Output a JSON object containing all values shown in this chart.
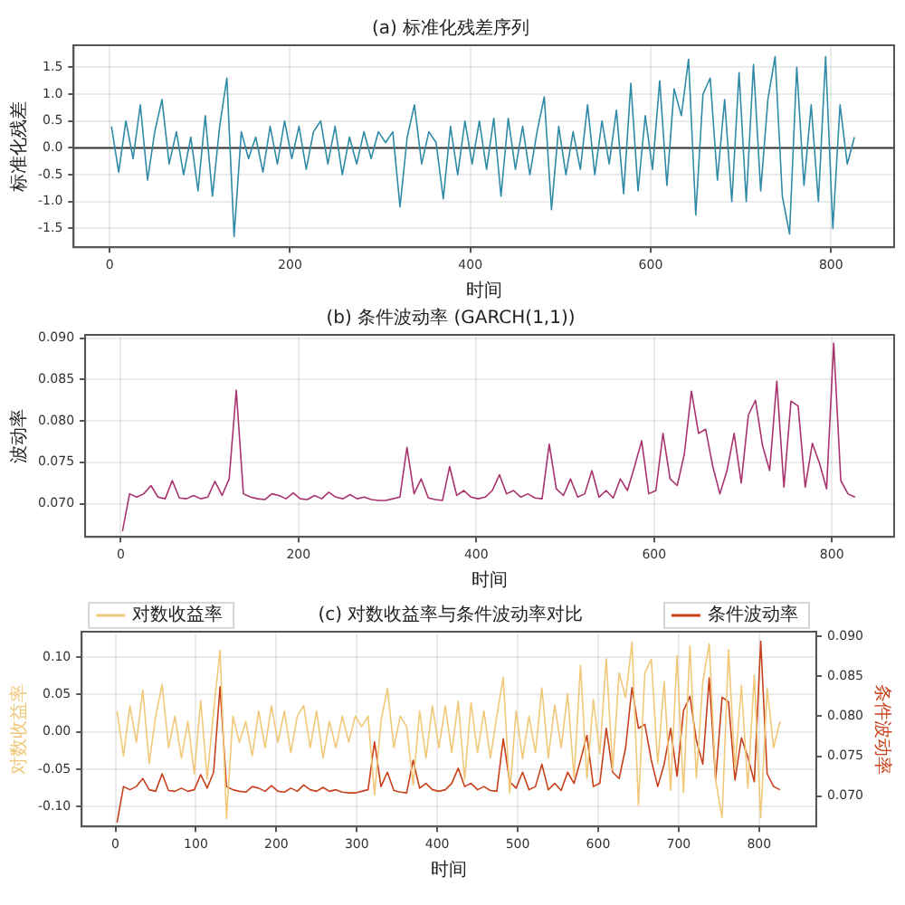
{
  "chart_data": [
    {
      "type": "line",
      "title": "(a) 标准化残差序列",
      "xlabel": "时间",
      "ylabel": "标准化残差",
      "x": [
        2,
        10,
        18,
        26,
        34,
        42,
        50,
        58,
        66,
        74,
        82,
        90,
        98,
        106,
        114,
        122,
        130,
        138,
        146,
        154,
        162,
        170,
        178,
        186,
        194,
        202,
        210,
        218,
        226,
        234,
        242,
        250,
        258,
        266,
        274,
        282,
        290,
        298,
        306,
        314,
        322,
        330,
        338,
        346,
        354,
        362,
        370,
        378,
        386,
        394,
        402,
        410,
        418,
        426,
        434,
        442,
        450,
        458,
        466,
        474,
        482,
        490,
        498,
        506,
        514,
        522,
        530,
        538,
        546,
        554,
        562,
        570,
        578,
        586,
        594,
        602,
        610,
        618,
        626,
        634,
        642,
        650,
        658,
        666,
        674,
        682,
        690,
        698,
        706,
        714,
        722,
        730,
        738,
        746,
        754,
        762,
        770,
        778,
        786,
        794,
        802,
        810,
        818,
        826
      ],
      "series": [
        {
          "color": "#2e8aa6",
          "values": [
            0.4,
            -0.45,
            0.5,
            -0.2,
            0.8,
            -0.6,
            0.3,
            0.9,
            -0.3,
            0.3,
            -0.5,
            0.2,
            -0.8,
            0.6,
            -0.9,
            0.4,
            1.3,
            -1.65,
            0.3,
            -0.2,
            0.2,
            -0.45,
            0.4,
            -0.3,
            0.5,
            -0.2,
            0.4,
            -0.4,
            0.3,
            0.5,
            -0.3,
            0.4,
            -0.5,
            0.2,
            -0.3,
            0.3,
            -0.2,
            0.3,
            0.1,
            0.3,
            -1.1,
            0.2,
            0.8,
            -0.3,
            0.3,
            0.1,
            -0.95,
            0.4,
            -0.5,
            0.5,
            -0.3,
            0.5,
            -0.4,
            0.55,
            -0.9,
            0.55,
            -0.4,
            0.4,
            -0.5,
            0.3,
            0.95,
            -1.15,
            0.4,
            -0.5,
            0.3,
            -0.4,
            0.8,
            -0.5,
            0.5,
            -0.3,
            0.7,
            -0.85,
            1.2,
            -0.8,
            0.6,
            -0.4,
            1.25,
            -0.7,
            1.1,
            0.6,
            1.65,
            -1.25,
            1.0,
            1.3,
            -0.6,
            0.9,
            -1.0,
            1.4,
            -1.0,
            1.55,
            -0.8,
            0.9,
            1.7,
            -0.9,
            -1.6,
            1.5,
            -0.7,
            0.8,
            -1.0,
            1.7,
            -1.5,
            0.8,
            -0.3,
            0.2
          ]
        }
      ],
      "xlim": [
        -40,
        870
      ],
      "ylim": [
        -1.85,
        1.91
      ],
      "xticks": [
        0,
        200,
        400,
        600,
        800
      ],
      "yticks": [
        -1.5,
        {
          "value": -1,
          "label": "-1.0"
        },
        -0.5,
        {
          "value": 0,
          "label": "0.0"
        },
        0.5,
        {
          "value": 1,
          "label": "1.0"
        },
        1.5
      ],
      "grid": true,
      "ref_lines": [
        {
          "axis": "y",
          "value": 0,
          "color": "#333333"
        }
      ]
    },
    {
      "type": "line",
      "title": "(b) 条件波动率 (GARCH(1,1))",
      "xlabel": "时间",
      "ylabel": "波动率",
      "x": [
        2,
        10,
        18,
        26,
        34,
        42,
        50,
        58,
        66,
        74,
        82,
        90,
        98,
        106,
        114,
        122,
        130,
        138,
        146,
        154,
        162,
        170,
        178,
        186,
        194,
        202,
        210,
        218,
        226,
        234,
        242,
        250,
        258,
        266,
        274,
        282,
        290,
        298,
        306,
        314,
        322,
        330,
        338,
        346,
        354,
        362,
        370,
        378,
        386,
        394,
        402,
        410,
        418,
        426,
        434,
        442,
        450,
        458,
        466,
        474,
        482,
        490,
        498,
        506,
        514,
        522,
        530,
        538,
        546,
        554,
        562,
        570,
        578,
        586,
        594,
        602,
        610,
        618,
        626,
        634,
        642,
        650,
        658,
        666,
        674,
        682,
        690,
        698,
        706,
        714,
        722,
        730,
        738,
        746,
        754,
        762,
        770,
        778,
        786,
        794,
        802,
        810,
        818,
        826
      ],
      "series": [
        {
          "color": "#a8326e",
          "values": [
            0.0667,
            0.0712,
            0.0708,
            0.0712,
            0.0722,
            0.0708,
            0.0706,
            0.0728,
            0.0707,
            0.0706,
            0.071,
            0.0706,
            0.0708,
            0.0727,
            0.071,
            0.073,
            0.0837,
            0.0712,
            0.0708,
            0.0706,
            0.0705,
            0.0712,
            0.071,
            0.0706,
            0.0713,
            0.0706,
            0.0705,
            0.071,
            0.0706,
            0.0714,
            0.0708,
            0.0706,
            0.0711,
            0.0706,
            0.0708,
            0.0705,
            0.0704,
            0.0704,
            0.0706,
            0.0708,
            0.0768,
            0.0712,
            0.073,
            0.0707,
            0.0705,
            0.0704,
            0.0745,
            0.071,
            0.0716,
            0.0708,
            0.0706,
            0.0708,
            0.0716,
            0.0735,
            0.0712,
            0.0716,
            0.0708,
            0.0712,
            0.0707,
            0.0706,
            0.0772,
            0.0718,
            0.071,
            0.073,
            0.0708,
            0.0712,
            0.074,
            0.0708,
            0.0716,
            0.0707,
            0.073,
            0.0716,
            0.0745,
            0.0776,
            0.0712,
            0.0716,
            0.0785,
            0.073,
            0.0722,
            0.076,
            0.0836,
            0.0785,
            0.079,
            0.0745,
            0.0712,
            0.074,
            0.0785,
            0.0725,
            0.0807,
            0.0825,
            0.077,
            0.074,
            0.0848,
            0.072,
            0.0824,
            0.0818,
            0.072,
            0.0773,
            0.0749,
            0.0718,
            0.0894,
            0.0728,
            0.0712,
            0.0708
          ]
        }
      ],
      "xlim": [
        -40,
        870
      ],
      "ylim": [
        0.066,
        0.0904
      ],
      "xticks": [
        0,
        200,
        400,
        600,
        800
      ],
      "yticks": [
        {
          "value": 0.07,
          "label": "0.070"
        },
        0.075,
        {
          "value": 0.08,
          "label": "0.080"
        },
        0.085,
        {
          "value": 0.09,
          "label": "0.090"
        }
      ],
      "grid": true
    },
    {
      "type": "line",
      "title": "(c) 对数收益率与条件波动率对比",
      "xlabel": "时间",
      "ylabel": "对数收益率",
      "y2label": "条件波动率",
      "x": [
        2,
        10,
        18,
        26,
        34,
        42,
        50,
        58,
        66,
        74,
        82,
        90,
        98,
        106,
        114,
        122,
        130,
        138,
        146,
        154,
        162,
        170,
        178,
        186,
        194,
        202,
        210,
        218,
        226,
        234,
        242,
        250,
        258,
        266,
        274,
        282,
        290,
        298,
        306,
        314,
        322,
        330,
        338,
        346,
        354,
        362,
        370,
        378,
        386,
        394,
        402,
        410,
        418,
        426,
        434,
        442,
        450,
        458,
        466,
        474,
        482,
        490,
        498,
        506,
        514,
        522,
        530,
        538,
        546,
        554,
        562,
        570,
        578,
        586,
        594,
        602,
        610,
        618,
        626,
        634,
        642,
        650,
        658,
        666,
        674,
        682,
        690,
        698,
        706,
        714,
        722,
        730,
        738,
        746,
        754,
        762,
        770,
        778,
        786,
        794,
        802,
        810,
        818,
        826
      ],
      "series": [
        {
          "name": "对数收益率",
          "color": "#f0c878",
          "values": [
            0.028,
            -0.032,
            0.035,
            -0.014,
            0.056,
            -0.042,
            0.021,
            0.063,
            -0.021,
            0.021,
            -0.035,
            0.014,
            -0.056,
            0.042,
            -0.063,
            0.028,
            0.109,
            -0.116,
            0.021,
            -0.014,
            0.014,
            -0.032,
            0.028,
            -0.021,
            0.035,
            -0.014,
            0.028,
            -0.028,
            0.021,
            0.035,
            -0.021,
            0.028,
            -0.035,
            0.014,
            -0.021,
            0.021,
            -0.014,
            0.021,
            0.007,
            0.021,
            -0.084,
            0.014,
            0.058,
            -0.021,
            0.021,
            0.007,
            -0.071,
            0.028,
            -0.035,
            0.035,
            -0.021,
            0.035,
            -0.028,
            0.041,
            -0.064,
            0.039,
            -0.028,
            0.028,
            -0.035,
            0.021,
            0.073,
            -0.082,
            0.028,
            -0.036,
            0.021,
            -0.028,
            0.059,
            -0.035,
            0.036,
            -0.021,
            0.051,
            -0.061,
            0.089,
            -0.062,
            0.043,
            -0.029,
            0.098,
            -0.051,
            0.079,
            0.046,
            0.12,
            -0.098,
            0.079,
            0.097,
            -0.043,
            0.067,
            -0.078,
            0.102,
            -0.081,
            0.115,
            -0.062,
            0.067,
            0.118,
            -0.065,
            -0.115,
            0.11,
            -0.05,
            0.062,
            -0.075,
            0.076,
            -0.115,
            0.058,
            -0.021,
            0.014
          ]
        },
        {
          "name": "条件波动率",
          "color": "#c8401a",
          "axis": "y2",
          "values": [
            0.0667,
            0.0712,
            0.0708,
            0.0712,
            0.0722,
            0.0708,
            0.0706,
            0.0728,
            0.0707,
            0.0706,
            0.071,
            0.0706,
            0.0708,
            0.0727,
            0.071,
            0.073,
            0.0837,
            0.0712,
            0.0708,
            0.0706,
            0.0705,
            0.0712,
            0.071,
            0.0706,
            0.0713,
            0.0706,
            0.0705,
            0.071,
            0.0706,
            0.0714,
            0.0708,
            0.0706,
            0.0711,
            0.0706,
            0.0708,
            0.0705,
            0.0704,
            0.0704,
            0.0706,
            0.0708,
            0.0768,
            0.0712,
            0.073,
            0.0707,
            0.0705,
            0.0704,
            0.0745,
            0.071,
            0.0716,
            0.0708,
            0.0706,
            0.0708,
            0.0716,
            0.0735,
            0.0712,
            0.0716,
            0.0708,
            0.0712,
            0.0707,
            0.0706,
            0.0772,
            0.0718,
            0.071,
            0.073,
            0.0708,
            0.0712,
            0.074,
            0.0708,
            0.0716,
            0.0707,
            0.073,
            0.0716,
            0.0745,
            0.0776,
            0.0712,
            0.0716,
            0.0785,
            0.073,
            0.0722,
            0.076,
            0.0836,
            0.0785,
            0.079,
            0.0745,
            0.0712,
            0.074,
            0.0785,
            0.0725,
            0.0807,
            0.0825,
            0.077,
            0.074,
            0.0848,
            0.072,
            0.0824,
            0.0818,
            0.072,
            0.0773,
            0.0749,
            0.0718,
            0.0894,
            0.0728,
            0.0712,
            0.0708
          ]
        }
      ],
      "xlim": [
        -42,
        871
      ],
      "ylim": [
        -0.1265,
        0.134
      ],
      "y2lim": [
        0.0662,
        0.0906
      ],
      "xticks": [
        0,
        100,
        200,
        300,
        400,
        500,
        600,
        700,
        800
      ],
      "yticks": [
        {
          "value": -0.1,
          "label": "-0.10"
        },
        -0.05,
        {
          "value": 0,
          "label": "0.00"
        },
        0.05,
        {
          "value": 0.1,
          "label": "0.10"
        }
      ],
      "y2ticks": [
        {
          "value": 0.07,
          "label": "0.070"
        },
        0.075,
        {
          "value": 0.08,
          "label": "0.080"
        },
        0.085,
        {
          "value": 0.09,
          "label": "0.090"
        }
      ],
      "grid": true,
      "legend": "top"
    }
  ]
}
